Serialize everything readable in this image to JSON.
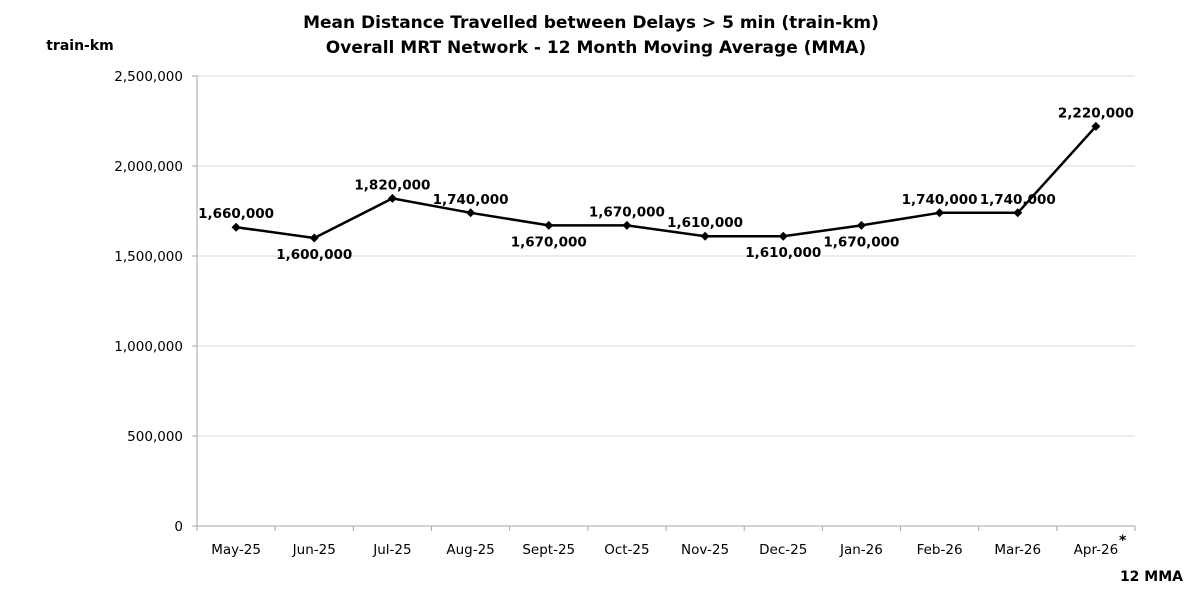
{
  "chart_data": {
    "type": "line",
    "title": [
      "Mean Distance Travelled between Delays > 5 min (train-km)",
      "Overall MRT Network - 12 Month Moving Average (MMA)"
    ],
    "ylabel": "train-km",
    "xlabel": "12 MMA",
    "categories": [
      "May-25",
      "Jun-25",
      "Jul-25",
      "Aug-25",
      "Sept-25",
      "Oct-25",
      "Nov-25",
      "Dec-25",
      "Jan-26",
      "Feb-26",
      "Mar-26",
      "Apr-26"
    ],
    "series": [
      {
        "values": [
          1660000,
          1600000,
          1820000,
          1740000,
          1670000,
          1670000,
          1610000,
          1610000,
          1670000,
          1740000,
          1740000,
          2220000
        ],
        "labels": [
          "1,660,000",
          "1,600,000",
          "1,820,000",
          "1,740,000",
          "1,670,000",
          "1,670,000",
          "1,610,000",
          "1,610,000",
          "1,670,000",
          "1,740,000",
          "1,740,000",
          "2,220,000"
        ],
        "label_position": [
          "above",
          "below",
          "above",
          "above",
          "below",
          "above",
          "above",
          "below",
          "below",
          "above",
          "above",
          "above"
        ],
        "color": "#000000"
      }
    ],
    "yticks": [
      0,
      500000,
      1000000,
      1500000,
      2000000,
      2500000
    ],
    "ytick_labels": [
      "0",
      "500,000",
      "1,000,000",
      "1,500,000",
      "2,000,000",
      "2,500,000"
    ],
    "ylim": [
      0,
      2500000
    ],
    "grid": true,
    "legend": "none",
    "footnote_marker": "*",
    "colors": {
      "line": "#000000",
      "grid": "#d9d9d9",
      "axis": "#a6a6a6"
    }
  }
}
